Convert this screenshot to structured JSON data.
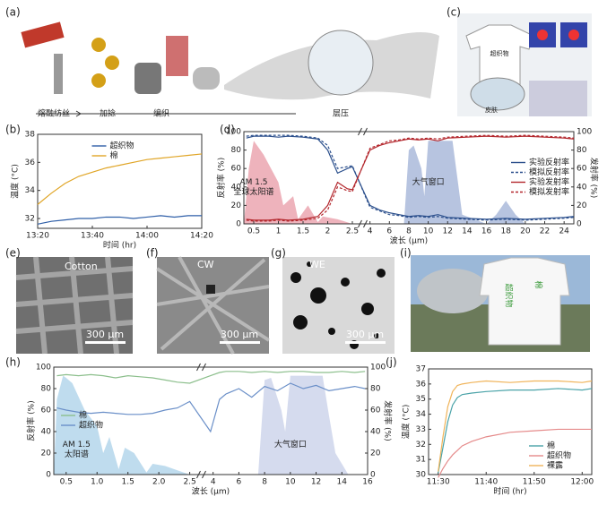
{
  "panel_labels": [
    "(a)",
    "(b)",
    "(c)",
    "(d)",
    "(e)",
    "(f)",
    "(g)",
    "(h)",
    "(i)",
    "(j)"
  ],
  "process": {
    "steps": [
      "熔融纺丝",
      "加捻",
      "编织",
      "层压"
    ]
  },
  "panel_c": {
    "shirt_label": "超织物",
    "skin_label": "皮肤"
  },
  "micrographs": [
    {
      "label": "Cotton",
      "scale": "300 μm"
    },
    {
      "label": "CW",
      "scale": "300 μm"
    },
    {
      "label": "WE",
      "scale": "300 μm"
    }
  ],
  "panel_i": {
    "labels": [
      "超织物",
      "棉"
    ]
  },
  "chart_data": [
    {
      "type": "line",
      "xlabel": "时间 (hr)",
      "ylabel": "温度 (°C)",
      "legend": "upper-center",
      "xlim": [
        800,
        860
      ],
      "xticks": [
        {
          "value": 800,
          "label": "13:20"
        },
        {
          "value": 820,
          "label": "13:40"
        },
        {
          "value": 840,
          "label": "14:00"
        },
        {
          "value": 860,
          "label": "14:20"
        }
      ],
      "ylim": [
        31.3,
        38
      ],
      "yticks": [
        32,
        34,
        36,
        38
      ],
      "x": [
        800,
        805,
        810,
        815,
        820,
        825,
        830,
        835,
        840,
        845,
        850,
        855,
        860
      ],
      "series": [
        {
          "name": "超织物",
          "color": "#2f5fa8",
          "values": [
            31.6,
            31.8,
            31.9,
            32.0,
            32.0,
            32.1,
            32.1,
            32.0,
            32.1,
            32.2,
            32.1,
            32.2,
            32.2
          ]
        },
        {
          "name": "棉",
          "color": "#e0a526",
          "values": [
            33.0,
            33.8,
            34.5,
            35.0,
            35.3,
            35.6,
            35.8,
            36.0,
            36.2,
            36.3,
            36.4,
            36.5,
            36.6
          ]
        }
      ]
    },
    {
      "type": "line",
      "xlabel": "波长 (μm)",
      "ylabel": "反射率 (%)",
      "y2label": "发射率 (%)",
      "legend": "center-right",
      "xlim": [
        0.3,
        25
      ],
      "xbreak": [
        2.6,
        3.8
      ],
      "xticks": [
        0.5,
        1,
        1.5,
        2,
        2.5,
        4,
        6,
        8,
        10,
        12,
        14,
        16,
        18,
        20,
        22,
        24
      ],
      "ylim": [
        0,
        100
      ],
      "yticks": [
        0,
        20,
        40,
        60,
        80,
        100
      ],
      "y2lim": [
        0,
        100
      ],
      "y2ticks": [
        0,
        20,
        40,
        60,
        80,
        100
      ],
      "x": [
        0.35,
        0.5,
        0.8,
        1.0,
        1.2,
        1.5,
        1.8,
        2.0,
        2.2,
        2.4,
        2.5,
        4,
        5,
        6,
        7,
        8,
        9,
        10,
        11,
        12,
        14,
        16,
        18,
        20,
        22,
        24,
        25
      ],
      "series": [
        {
          "name": "实验反射率",
          "color": "#2b4f8c",
          "values": [
            93,
            95,
            95,
            94,
            95,
            94,
            92,
            80,
            55,
            60,
            62,
            20,
            15,
            12,
            10,
            8,
            9,
            8,
            10,
            7,
            6,
            5,
            6,
            5,
            6,
            7,
            8
          ]
        },
        {
          "name": "模拟反射率",
          "color": "#2b4f8c",
          "dash": true,
          "values": [
            95,
            96,
            96,
            96,
            96,
            95,
            93,
            85,
            60,
            62,
            63,
            18,
            14,
            10,
            9,
            7,
            8,
            7,
            8,
            6,
            5,
            4,
            5,
            4,
            5,
            6,
            7
          ]
        },
        {
          "name": "实验发射率",
          "color": "#b3272d",
          "axis": "y2",
          "values": [
            5,
            4,
            4,
            5,
            4,
            5,
            8,
            20,
            45,
            38,
            37,
            80,
            85,
            88,
            90,
            92,
            91,
            92,
            90,
            93,
            94,
            95,
            94,
            95,
            94,
            93,
            92
          ]
        },
        {
          "name": "模拟发射率",
          "color": "#b3272d",
          "dash": true,
          "axis": "y2",
          "values": [
            4,
            3,
            3,
            4,
            3,
            4,
            6,
            15,
            40,
            36,
            35,
            82,
            86,
            90,
            91,
            93,
            92,
            93,
            92,
            94,
            95,
            96,
            95,
            96,
            95,
            94,
            93
          ]
        }
      ],
      "areas": [
        {
          "label": [
            "AM 1.5",
            "全球太阳谱"
          ],
          "color": "#e89aa6",
          "x": [
            0.3,
            0.4,
            0.5,
            0.7,
            1.0,
            1.1,
            1.3,
            1.4,
            1.6,
            1.8,
            1.9,
            2.2,
            2.5
          ],
          "values": [
            0,
            60,
            90,
            75,
            45,
            20,
            30,
            5,
            20,
            2,
            8,
            5,
            0
          ]
        },
        {
          "label": [
            "大气窗口"
          ],
          "color": "#9fb0d6",
          "x": [
            7.5,
            8,
            8.5,
            9.3,
            9.6,
            10,
            12.5,
            13,
            13.5,
            16,
            17,
            18,
            19,
            20,
            25
          ],
          "values": [
            0,
            80,
            85,
            60,
            30,
            90,
            90,
            50,
            10,
            0,
            10,
            25,
            10,
            0,
            0
          ]
        }
      ]
    },
    {
      "type": "line",
      "xlabel": "波长 (μm)",
      "ylabel": "反射率 (%)",
      "y2label": "发射率 (%)",
      "legend": "center-left",
      "xlim": [
        0.3,
        16
      ],
      "xbreak": [
        2.6,
        3.5
      ],
      "xticks": [
        0.5,
        {
          "value": 1,
          "label": "1.0"
        },
        1.5,
        {
          "value": 2,
          "label": "2.0"
        },
        2.5,
        4,
        6,
        8,
        10,
        12,
        14,
        16
      ],
      "ylim": [
        0,
        100
      ],
      "yticks": [
        0,
        20,
        40,
        60,
        80,
        100
      ],
      "y2lim": [
        0,
        100
      ],
      "y2ticks": [
        0,
        20,
        40,
        60,
        80,
        100
      ],
      "x": [
        0.35,
        0.5,
        0.7,
        0.9,
        1.1,
        1.3,
        1.5,
        1.7,
        1.9,
        2.1,
        2.3,
        2.5,
        3.8,
        4.5,
        5,
        6,
        7,
        8,
        9,
        10,
        11,
        12,
        13,
        14,
        15,
        15.8
      ],
      "series": [
        {
          "name": "棉",
          "color": "#8cbf8c",
          "axis": "y2",
          "values": [
            92,
            93,
            92,
            93,
            92,
            90,
            92,
            91,
            90,
            88,
            86,
            85,
            92,
            95,
            96,
            96,
            95,
            96,
            95,
            96,
            96,
            95,
            95,
            96,
            95,
            96
          ]
        },
        {
          "name": "超织物",
          "color": "#6a8fc8",
          "values": [
            62,
            60,
            58,
            57,
            58,
            57,
            56,
            56,
            57,
            60,
            62,
            68,
            40,
            70,
            75,
            80,
            72,
            82,
            78,
            85,
            80,
            83,
            78,
            80,
            82,
            80
          ]
        }
      ],
      "areas": [
        {
          "label": [
            "AM 1.5",
            "太阳谱"
          ],
          "color": "#a9d0e8",
          "x": [
            0.3,
            0.35,
            0.45,
            0.5,
            0.6,
            0.8,
            1.0,
            1.1,
            1.2,
            1.35,
            1.45,
            1.6,
            1.8,
            1.9,
            2.1,
            2.3,
            2.5
          ],
          "values": [
            0,
            70,
            92,
            90,
            85,
            60,
            45,
            20,
            35,
            5,
            25,
            20,
            2,
            10,
            8,
            4,
            0
          ]
        },
        {
          "label": [
            "大气窗口"
          ],
          "color": "#c7cfe8",
          "x": [
            7.5,
            8,
            8.5,
            9.3,
            9.6,
            10,
            12.5,
            13,
            13.5,
            14.5
          ],
          "values": [
            0,
            88,
            90,
            60,
            40,
            92,
            92,
            55,
            20,
            0
          ]
        }
      ]
    },
    {
      "type": "line",
      "xlabel": "时间 (hr)",
      "ylabel": "温度 (°C)",
      "legend": "lower-right",
      "xlim": [
        688,
        722
      ],
      "xticks": [
        {
          "value": 690,
          "label": "11:30"
        },
        {
          "value": 700,
          "label": "11:40"
        },
        {
          "value": 710,
          "label": "11:50"
        },
        {
          "value": 720,
          "label": "12:00"
        }
      ],
      "ylim": [
        30,
        37
      ],
      "yticks": [
        30,
        31,
        32,
        33,
        34,
        35,
        36,
        37
      ],
      "x": [
        690,
        691,
        692,
        693,
        694,
        695,
        697,
        700,
        705,
        710,
        715,
        720,
        722
      ],
      "series": [
        {
          "name": "棉",
          "color": "#4aa3a8",
          "values": [
            30.1,
            31.8,
            33.5,
            34.6,
            35.1,
            35.3,
            35.4,
            35.5,
            35.6,
            35.6,
            35.7,
            35.6,
            35.7
          ]
        },
        {
          "name": "超织物",
          "color": "#e58a8a",
          "values": [
            29.8,
            30.4,
            30.9,
            31.3,
            31.6,
            31.9,
            32.2,
            32.5,
            32.8,
            32.9,
            33.0,
            33.0,
            33.0
          ]
        },
        {
          "name": "裸露",
          "color": "#f0b45a",
          "values": [
            30.2,
            32.5,
            34.5,
            35.5,
            35.9,
            36.0,
            36.1,
            36.2,
            36.1,
            36.2,
            36.2,
            36.1,
            36.2
          ]
        }
      ]
    }
  ]
}
